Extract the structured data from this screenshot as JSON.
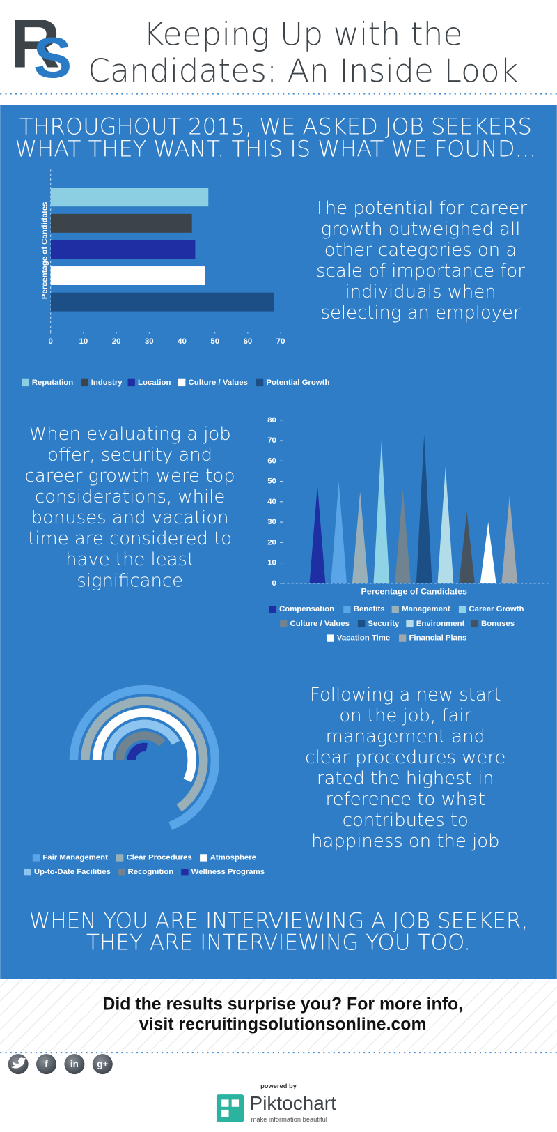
{
  "header": {
    "logo": [
      "R",
      "S"
    ],
    "title": [
      "Keeping Up with the",
      "Candidates: An Inside Look"
    ]
  },
  "intro": [
    "THROUGHOUT 2015, WE ASKED JOB SEEKERS",
    "WHAT THEY WANT. THIS IS WHAT WE FOUND..."
  ],
  "chart_data": [
    {
      "type": "bar",
      "orientation": "horizontal",
      "y_label": "Percentage of Candidates",
      "series": [
        {
          "name": "Reputation",
          "color": "#8ccfe3",
          "values": [
            48
          ]
        },
        {
          "name": "Industry",
          "color": "#3d4449",
          "values": [
            43
          ]
        },
        {
          "name": "Location",
          "color": "#1f2ea3",
          "values": [
            44
          ]
        },
        {
          "name": "Culture / Values",
          "color": "#ffffff",
          "values": [
            47
          ]
        },
        {
          "name": "Potential Growth",
          "color": "#1c4f86",
          "values": [
            68
          ]
        }
      ],
      "xlim": [
        0,
        70
      ],
      "xticks": [
        0,
        10,
        20,
        30,
        40,
        50,
        60,
        70
      ]
    },
    {
      "type": "cone",
      "x_label": "Percentage of Candidates",
      "series": [
        {
          "name": "Compensation",
          "color": "#1f2ea3",
          "values": [
            48
          ]
        },
        {
          "name": "Benefits",
          "color": "#5aa5e8",
          "values": [
            50
          ]
        },
        {
          "name": "Management",
          "color": "#9ab0b8",
          "values": [
            45
          ]
        },
        {
          "name": "Career Growth",
          "color": "#8ed3e6",
          "values": [
            70
          ]
        },
        {
          "name": "Culture / Values",
          "color": "#6f8390",
          "values": [
            46
          ]
        },
        {
          "name": "Security",
          "color": "#1c4f86",
          "values": [
            73
          ]
        },
        {
          "name": "Environment",
          "color": "#b2dde8",
          "values": [
            57
          ]
        },
        {
          "name": "Bonuses",
          "color": "#46535f",
          "values": [
            35
          ]
        },
        {
          "name": "Vacation Time",
          "color": "#ffffff",
          "values": [
            30
          ]
        },
        {
          "name": "Financial Plans",
          "color": "#a0a8ad",
          "values": [
            43
          ]
        }
      ],
      "ylim": [
        0,
        80
      ],
      "yticks": [
        0,
        10,
        20,
        30,
        40,
        50,
        60,
        70,
        80
      ]
    },
    {
      "type": "radial",
      "series": [
        {
          "name": "Fair Management",
          "color": "#5aa5e8",
          "values": [
            69
          ]
        },
        {
          "name": "Clear Procedures",
          "color": "#9ab0b8",
          "values": [
            65
          ]
        },
        {
          "name": "Atmosphere",
          "color": "#ffffff",
          "values": [
            57
          ]
        },
        {
          "name": "Up-to-Date Facilities",
          "color": "#8ec5f0",
          "values": [
            42
          ]
        },
        {
          "name": "Recognition",
          "color": "#6f8390",
          "values": [
            38
          ]
        },
        {
          "name": "Wellness Programs",
          "color": "#1f2ea3",
          "values": [
            28
          ]
        }
      ]
    }
  ],
  "notes": [
    [
      "The potential for career",
      "growth outweighed all",
      "other categories on a",
      "scale of importance for",
      "individuals when",
      "selecting an employer"
    ],
    [
      "When evaluating a job",
      "offer, security and",
      "career growth were top",
      "considerations, while",
      "bonuses and vacation",
      "time are considered to",
      "have the least",
      "significance"
    ],
    [
      "Following a new start",
      "on the job, fair",
      "management and",
      "clear procedures were",
      "rated the highest in",
      "reference to what",
      "contributes to",
      "happiness on the job"
    ]
  ],
  "closing": [
    "WHEN YOU ARE INTERVIEWING A JOB SEEKER,",
    "THEY ARE INTERVIEWING YOU TOO."
  ],
  "footer": {
    "cta": [
      "Did the results surprise you? For more info,",
      "visit recruitingsolutionsonline.com"
    ],
    "social": [
      "f",
      "in",
      "g+"
    ],
    "powered_by": "powered by",
    "brand": "Piktochart",
    "tagline": "make information beautiful"
  }
}
